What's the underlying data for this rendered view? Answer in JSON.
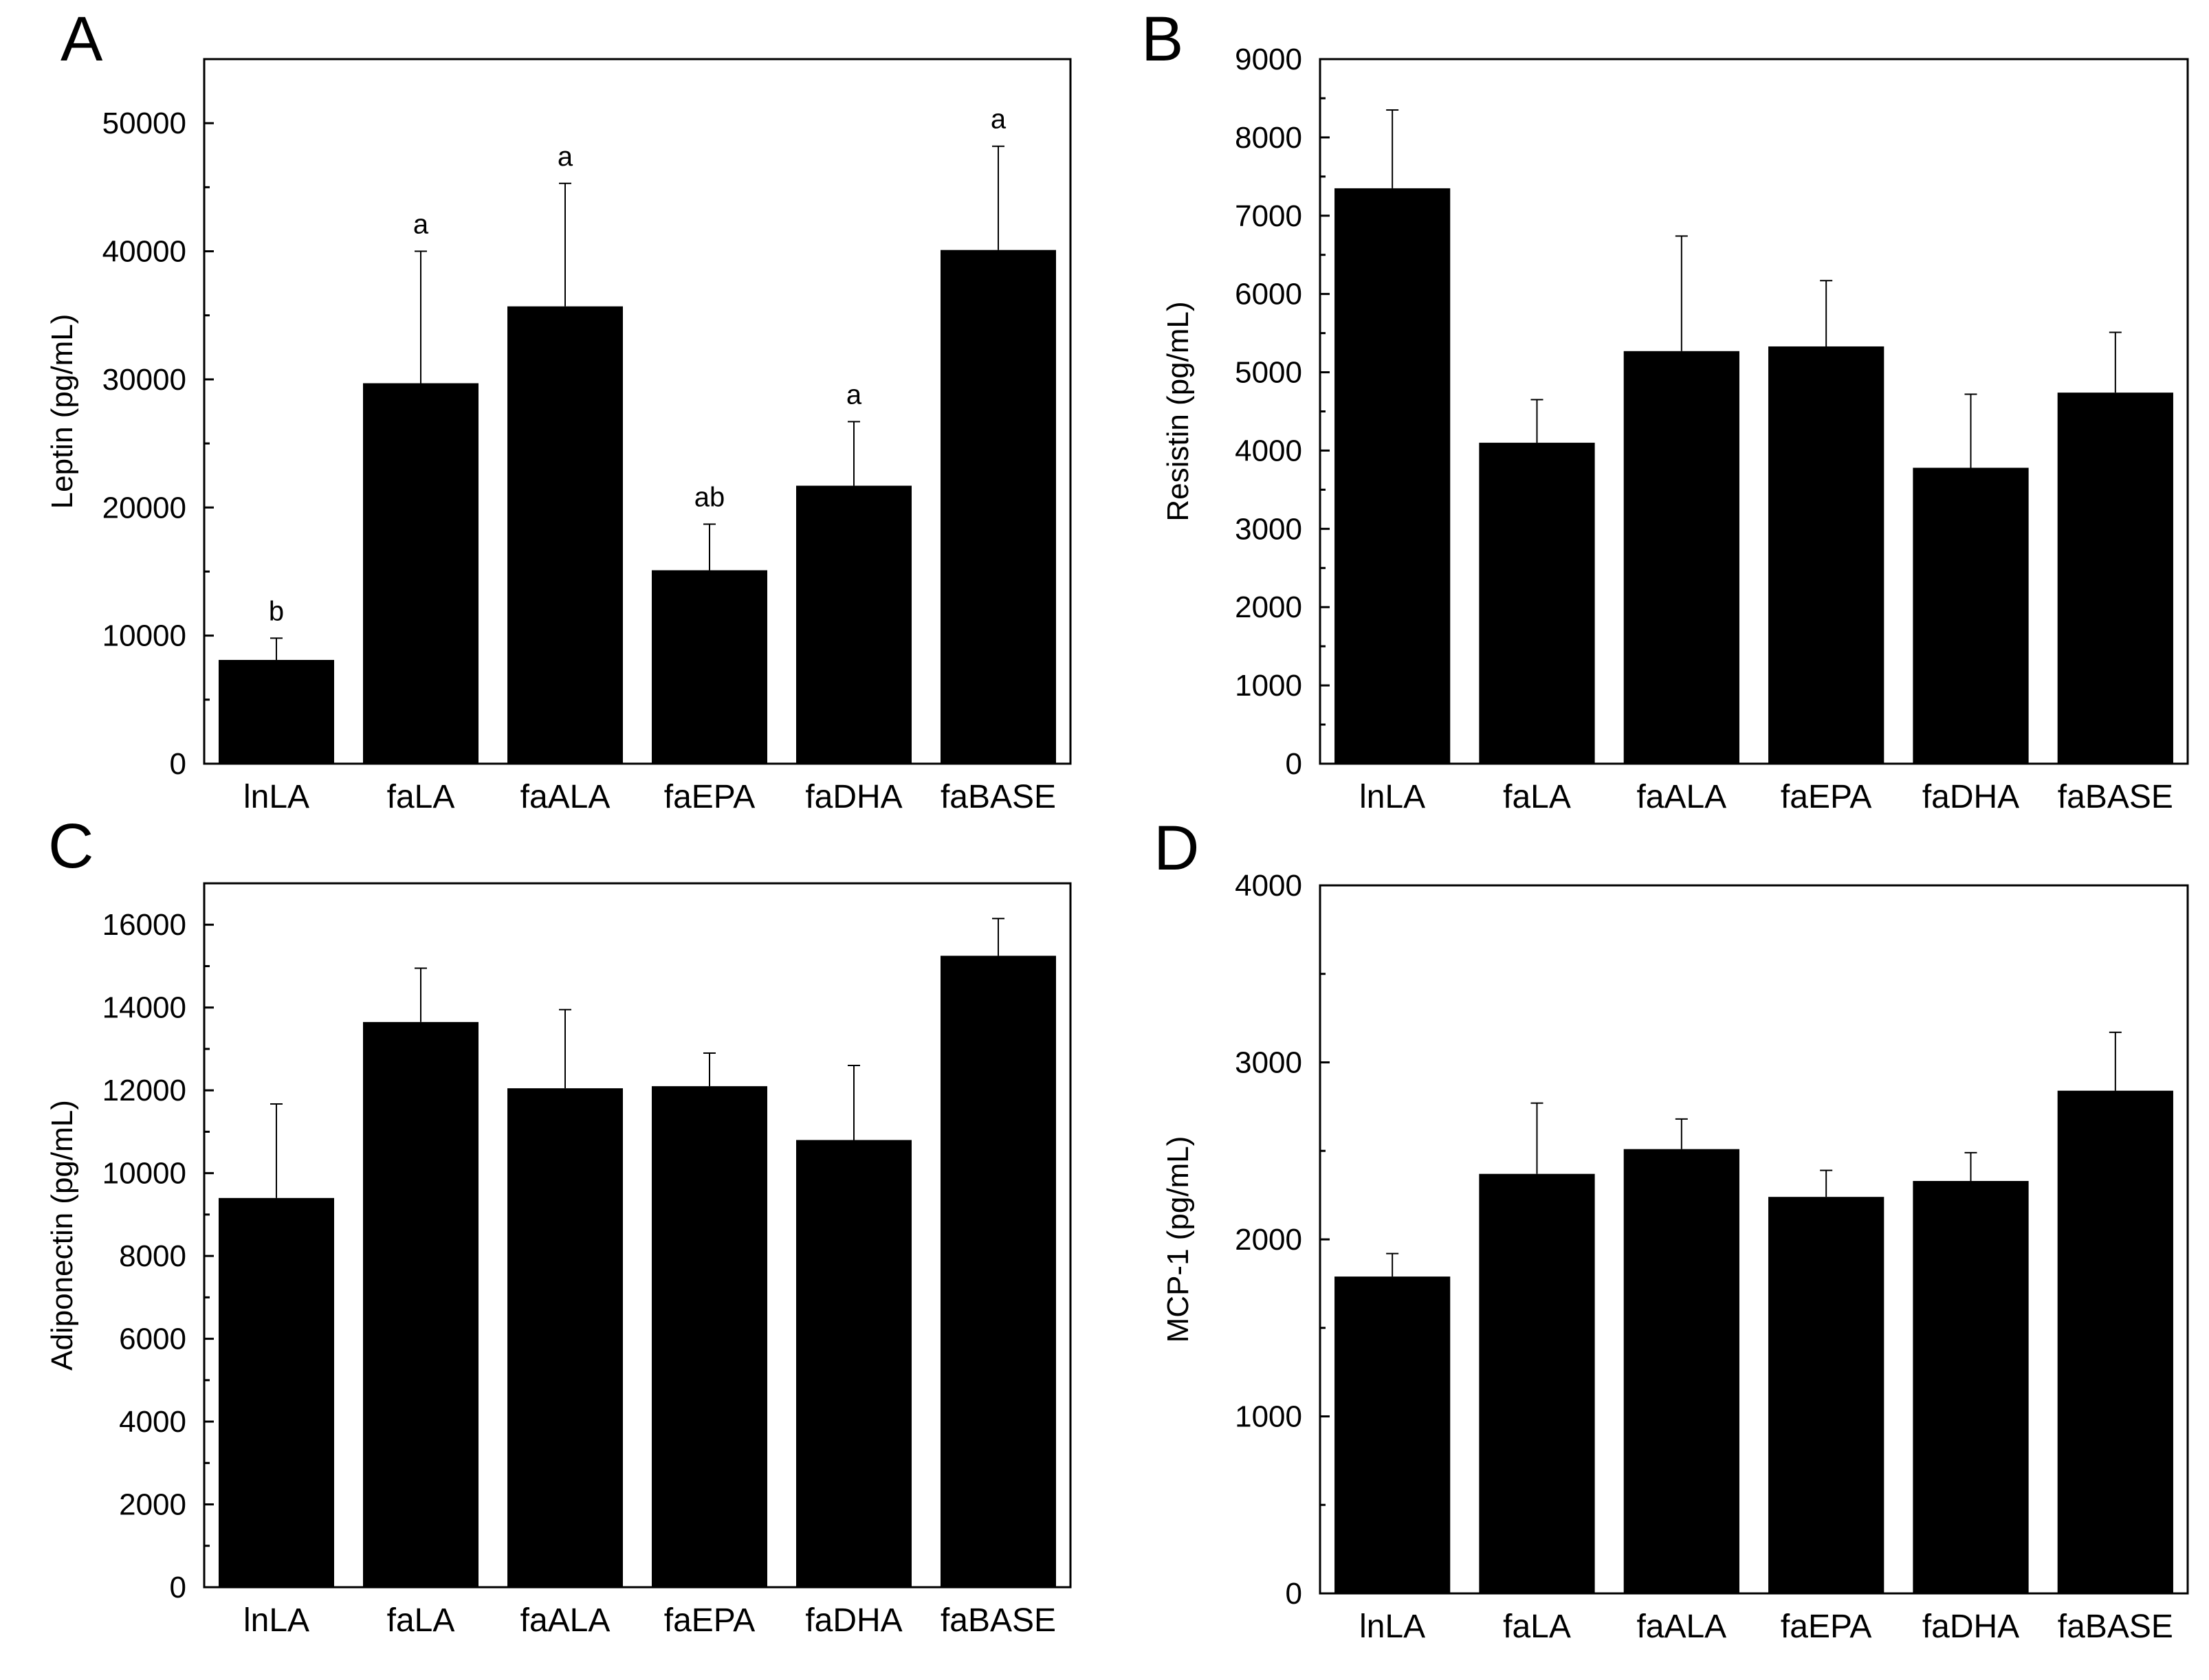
{
  "chart_data": [
    {
      "panel": "A",
      "type": "bar",
      "categories": [
        "lnLA",
        "faLA",
        "faALA",
        "faEPA",
        "faDHA",
        "faBASE"
      ],
      "values": [
        8100,
        29700,
        35700,
        15100,
        21700,
        40100
      ],
      "errors": [
        1700,
        10300,
        9600,
        3600,
        5000,
        8100
      ],
      "significance": [
        "b",
        "a",
        "a",
        "ab",
        "a",
        "a"
      ],
      "ylabel": "Leptin (pg/mL)",
      "ylim": [
        0,
        55000
      ],
      "yticks": [
        0,
        10000,
        20000,
        30000,
        40000,
        50000
      ],
      "ytick_labels": [
        "0",
        "10000",
        "20000",
        "30000",
        "40000",
        "50000"
      ],
      "bar_color": "#000000"
    },
    {
      "panel": "B",
      "type": "bar",
      "categories": [
        "lnLA",
        "faLA",
        "faALA",
        "faEPA",
        "faDHA",
        "faBASE"
      ],
      "values": [
        7350,
        4100,
        5270,
        5330,
        3780,
        4740
      ],
      "errors": [
        1000,
        550,
        1470,
        840,
        940,
        770
      ],
      "ylabel": "Resistin (pg/mL)",
      "ylim": [
        0,
        9000
      ],
      "yticks": [
        0,
        1000,
        2000,
        3000,
        4000,
        5000,
        6000,
        7000,
        8000,
        9000
      ],
      "ytick_labels": [
        "0",
        "1000",
        "2000",
        "3000",
        "4000",
        "5000",
        "6000",
        "7000",
        "8000",
        "9000"
      ],
      "bar_color": "#000000"
    },
    {
      "panel": "C",
      "type": "bar",
      "categories": [
        "lnLA",
        "faLA",
        "faALA",
        "faEPA",
        "faDHA",
        "faBASE"
      ],
      "values": [
        9400,
        13650,
        12050,
        12100,
        10800,
        15250
      ],
      "errors": [
        2270,
        1300,
        1900,
        800,
        1800,
        900
      ],
      "ylabel": "Adiponectin (pg/mL)",
      "ylim": [
        0,
        17000
      ],
      "yticks": [
        0,
        2000,
        4000,
        6000,
        8000,
        10000,
        12000,
        14000,
        16000
      ],
      "ytick_labels": [
        "0",
        "2000",
        "4000",
        "6000",
        "8000",
        "10000",
        "12000",
        "14000",
        "16000"
      ],
      "bar_color": "#000000"
    },
    {
      "panel": "D",
      "type": "bar",
      "categories": [
        "lnLA",
        "faLA",
        "faALA",
        "faEPA",
        "faDHA",
        "faBASE"
      ],
      "values": [
        1790,
        2370,
        2510,
        2240,
        2330,
        2840
      ],
      "errors": [
        130,
        400,
        170,
        150,
        160,
        330
      ],
      "ylabel": "MCP-1 (pg/mL)",
      "ylim": [
        0,
        4000
      ],
      "yticks": [
        0,
        1000,
        2000,
        3000,
        4000
      ],
      "ytick_labels": [
        "0",
        "1000",
        "2000",
        "3000",
        "4000"
      ],
      "bar_color": "#000000"
    }
  ]
}
